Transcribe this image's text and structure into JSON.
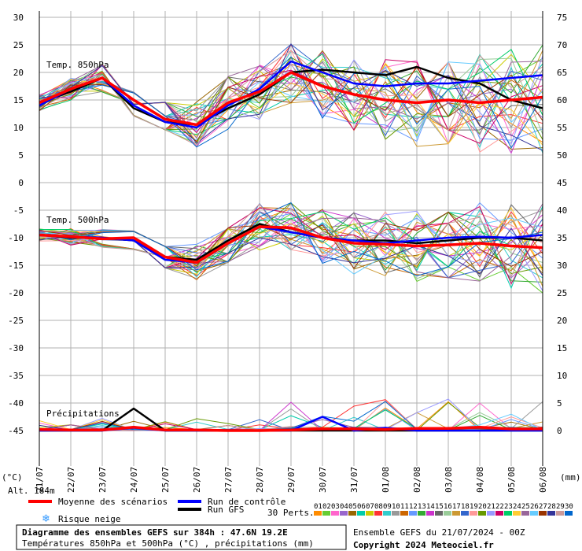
{
  "chart_data": {
    "type": "line",
    "x": [
      "21/07",
      "22/07",
      "23/07",
      "24/07",
      "25/07",
      "26/07",
      "27/07",
      "28/07",
      "29/07",
      "30/07",
      "31/07",
      "01/08",
      "02/08",
      "03/08",
      "04/08",
      "05/08",
      "06/08"
    ],
    "left_ticks": [
      "30",
      "25",
      "20",
      "15",
      "10",
      "5",
      "0",
      "-5",
      "-10",
      "-15",
      "-20",
      "-25",
      "-30",
      "-35",
      "-40",
      "-45"
    ],
    "right_ticks": [
      "75",
      "70",
      "65",
      "60",
      "55",
      "50",
      "45",
      "40",
      "35",
      "30",
      "25",
      "20",
      "15",
      "10",
      "5",
      "0"
    ],
    "left_unit": "(°C)",
    "right_unit": "(mm)",
    "panels": {
      "t850": {
        "label": "Temp. 850hPa",
        "mean": [
          14.5,
          17,
          19,
          15,
          11.5,
          10.5,
          14.5,
          16.5,
          20,
          17.5,
          16,
          15,
          14.5,
          15,
          14.5,
          15,
          15.5
        ],
        "control": [
          14,
          17,
          19,
          14,
          11,
          10,
          14,
          17,
          22,
          20,
          18,
          17.5,
          18,
          18,
          18.5,
          19,
          19.5
        ],
        "gfs": [
          14.5,
          16.5,
          19,
          13.5,
          11,
          10.5,
          13.5,
          16,
          20,
          20.5,
          20,
          19.5,
          21,
          19,
          18,
          15,
          13.5
        ]
      },
      "t500": {
        "label": "Temp. 500hPa",
        "mean": [
          -9.5,
          -9.8,
          -10.2,
          -10,
          -13.5,
          -14.5,
          -11,
          -8,
          -8.2,
          -10,
          -11,
          -11.2,
          -11.5,
          -11.3,
          -11,
          -11.5,
          -11.8
        ],
        "control": [
          -9.5,
          -9.8,
          -10,
          -10.5,
          -14,
          -14.5,
          -11,
          -8,
          -9,
          -10,
          -10.5,
          -11,
          -10.5,
          -10,
          -9.8,
          -10,
          -9.5
        ],
        "gfs": [
          -9.5,
          -10,
          -10,
          -10.5,
          -13.5,
          -14,
          -10.5,
          -7.5,
          -9,
          -10,
          -10.5,
          -10.5,
          -11,
          -10.5,
          -10,
          -10,
          -10.5
        ]
      },
      "precip": {
        "label": "Précipitations",
        "mean": [
          0.2,
          0.1,
          0.1,
          0.6,
          0.1,
          0.1,
          0,
          0,
          0.1,
          0.3,
          0.3,
          0.2,
          0.4,
          0.4,
          0.6,
          0.3,
          0.3
        ],
        "control": [
          0,
          0,
          0,
          0.5,
          0,
          0,
          0,
          0,
          0,
          2.5,
          0,
          0.5,
          0,
          0,
          0,
          0,
          0
        ],
        "gfs": [
          0,
          0,
          0,
          4,
          0,
          0,
          0,
          0,
          0,
          0,
          0,
          0,
          0,
          0,
          0,
          0,
          0
        ]
      }
    },
    "legend": {
      "mean": "Moyenne des scénarios",
      "control": "Run de contrôle",
      "gfs": "Run GFS",
      "snow": "Risque neige",
      "perts": "30 Perts.",
      "pert_ids": [
        "01",
        "02",
        "03",
        "04",
        "05",
        "06",
        "07",
        "08",
        "09",
        "10",
        "11",
        "12",
        "13",
        "14",
        "15",
        "16",
        "17",
        "18",
        "19",
        "20",
        "21",
        "22",
        "23",
        "24",
        "25",
        "26",
        "27",
        "28",
        "29",
        "30"
      ]
    },
    "colors": {
      "mean": "#ff0000",
      "control": "#0000ff",
      "gfs": "#000000",
      "grid": "#b0b0b0",
      "perts": [
        "#ff8c00",
        "#66cc33",
        "#ff66cc",
        "#9966cc",
        "#996600",
        "#00ccaa",
        "#cccc00",
        "#ff3333",
        "#33cccc",
        "#999999",
        "#cc6600",
        "#6699ff",
        "#33aa33",
        "#cc33cc",
        "#666666",
        "#99cc99",
        "#cc9933",
        "#3366cc",
        "#ff9999",
        "#669900",
        "#9999ff",
        "#cc0066",
        "#00cc66",
        "#ffcc33",
        "#996699",
        "#66ccff",
        "#993300",
        "#333399",
        "#cc9999",
        "#0066cc"
      ]
    }
  },
  "title": "Diagramme des ensembles GEFS sur 384h : 47.6N 19.2E",
  "subtitle": "Températures 850hPa et 500hPa (°C) , précipitations (mm)",
  "altitude": "Alt. 184m",
  "run_info": "Ensemble GEFS du 21/07/2024 - 00Z",
  "copyright": "Copyright 2024 Meteociel.fr"
}
